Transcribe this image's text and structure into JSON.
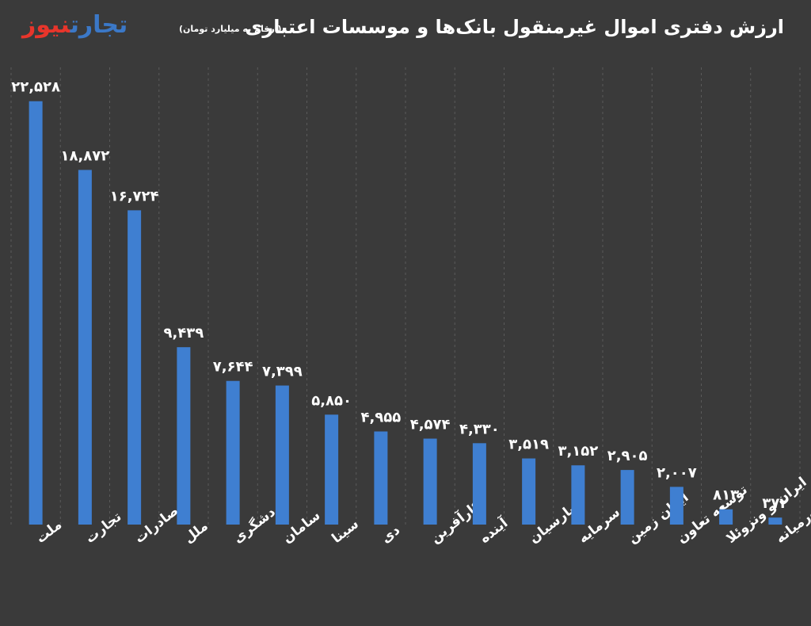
{
  "header": {
    "title": "ارزش دفتری اموال غیرمنقول بانک‌ها و موسسات اعتباری",
    "subtitle": "(ارقام به میلیارد تومان)",
    "logo_part1": "تجارت",
    "logo_part2": "نیوز"
  },
  "colors": {
    "background": "#3a3a3a",
    "bar": "#3f7fd1",
    "text": "#ffffff",
    "logo_blue": "#3b78c7",
    "logo_red": "#e8352b"
  },
  "chart_data": {
    "type": "bar",
    "title": "ارزش دفتری اموال غیرمنقول بانک‌ها و موسسات اعتباری",
    "subtitle": "(ارقام به میلیارد تومان)",
    "categories": [
      "ملت",
      "تجارت",
      "صادرات",
      "ملل",
      "گردشگری",
      "سامان",
      "سینا",
      "دی",
      "کارآفرین",
      "آینده",
      "پارسیان",
      "سرمایه",
      "ایران زمین",
      "توسعه تعاون",
      "ایران و ونزوئلا",
      "خاورمیانه"
    ],
    "values": [
      22528,
      18872,
      16724,
      9439,
      7644,
      7399,
      5850,
      4955,
      4574,
      4330,
      3519,
      3152,
      2905,
      2007,
      813,
      372
    ],
    "data_labels": [
      "۲۲,۵۲۸",
      "۱۸,۸۷۲",
      "۱۶,۷۲۴",
      "۹,۴۳۹",
      "۷,۶۴۴",
      "۷,۳۹۹",
      "۵,۸۵۰",
      "۴,۹۵۵",
      "۴,۵۷۴",
      "۴,۳۳۰",
      "۳,۵۱۹",
      "۳,۱۵۲",
      "۲,۹۰۵",
      "۲,۰۰۷",
      "۸۱۳",
      "۳۷۲"
    ],
    "grid": "vertical dashed",
    "legend": "none",
    "xlabel": "",
    "ylabel": ""
  }
}
